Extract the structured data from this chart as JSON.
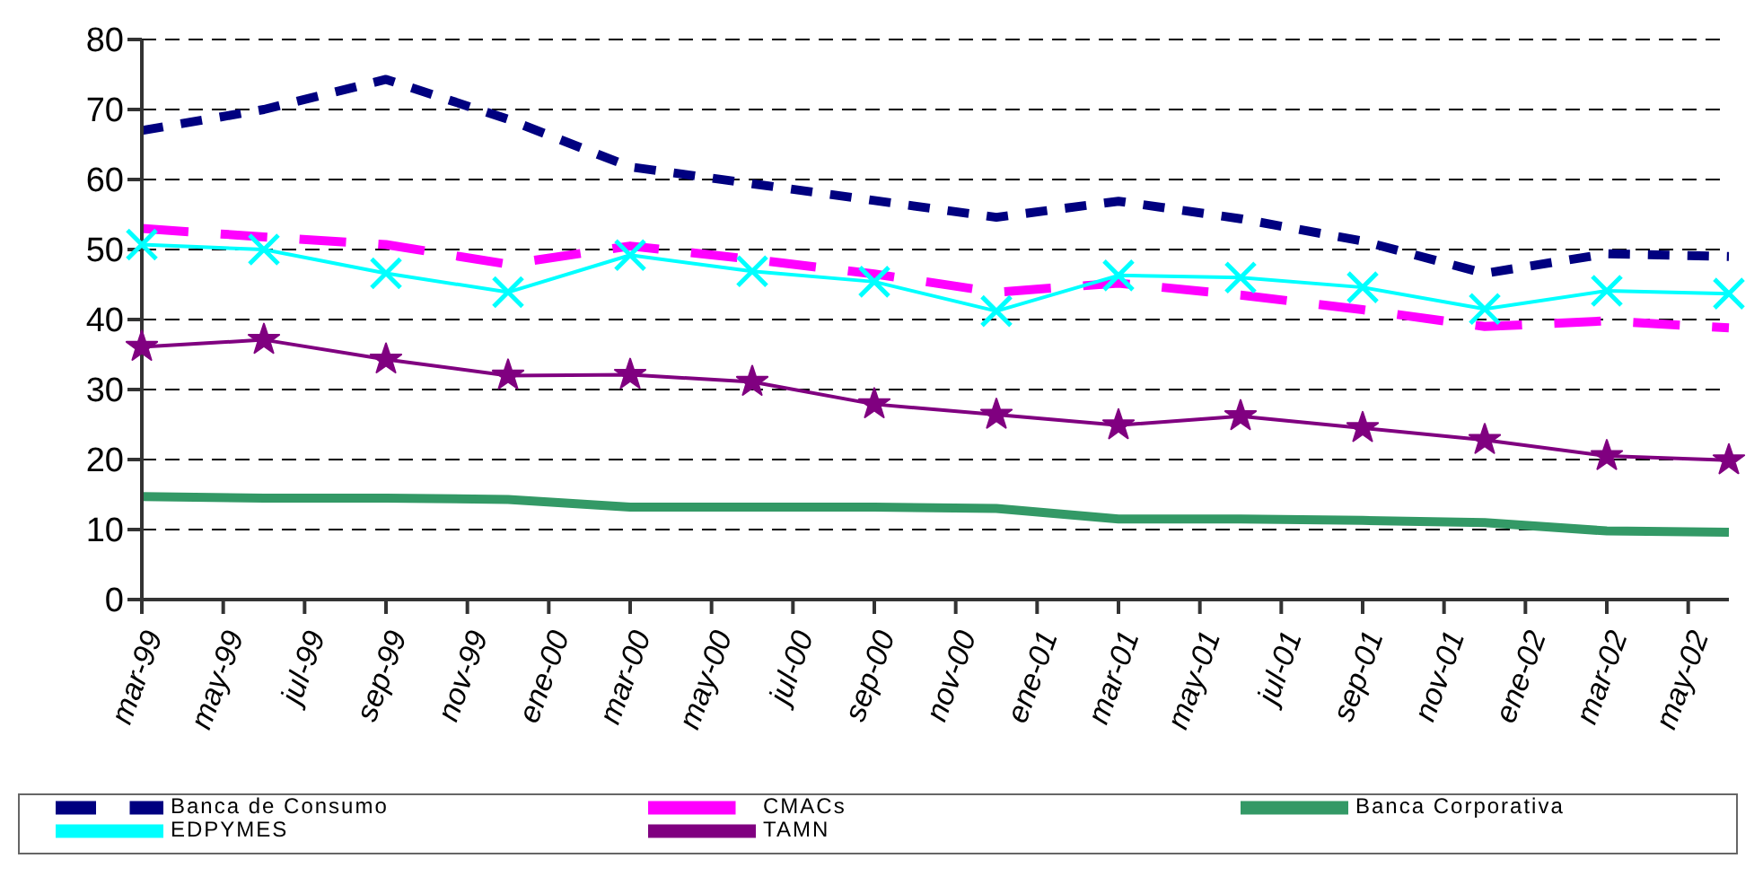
{
  "chart_data": {
    "type": "line",
    "categories": [
      "mar-99",
      null,
      "may-99",
      null,
      "jul-99",
      null,
      "sep-99",
      null,
      "nov-99",
      null,
      "ene-00",
      null,
      "mar-00",
      null,
      "may-00",
      null,
      "jul-00",
      null,
      "sep-00",
      null,
      "nov-00",
      null,
      "ene-01",
      null,
      "mar-01",
      null,
      "may-01",
      null,
      "jul-01",
      null,
      "sep-01",
      null,
      "nov-01",
      null,
      "ene-02",
      null,
      "mar-02",
      null,
      "may-02",
      null
    ],
    "series": [
      {
        "name": "Banca de Consumo",
        "color": "#000080",
        "line_style": "dashed",
        "marker": "none",
        "values": [
          67,
          null,
          null,
          70,
          null,
          null,
          74.3,
          null,
          null,
          68.6,
          null,
          null,
          61.8,
          null,
          null,
          59.4,
          null,
          null,
          57,
          null,
          null,
          54.6,
          null,
          null,
          56.9,
          null,
          null,
          54.4,
          null,
          null,
          51.2,
          null,
          null,
          46.6,
          null,
          null,
          49.4,
          null,
          null,
          49
        ]
      },
      {
        "name": "CMACs",
        "color": "#ff00ff",
        "line_style": "dashed",
        "marker": "none",
        "values": [
          53,
          null,
          null,
          51.8,
          null,
          null,
          50.7,
          null,
          null,
          47.9,
          null,
          null,
          50.5,
          null,
          null,
          48.6,
          null,
          null,
          46.5,
          null,
          null,
          43.9,
          null,
          null,
          45.2,
          null,
          null,
          43.5,
          null,
          null,
          41.4,
          null,
          null,
          39,
          null,
          null,
          39.8,
          null,
          null,
          38.8
        ]
      },
      {
        "name": "Banca Corporativa",
        "color": "#339966",
        "line_style": "solid",
        "marker": "none",
        "values": [
          14.7,
          null,
          null,
          14.5,
          null,
          null,
          14.5,
          null,
          null,
          14.3,
          null,
          null,
          13.2,
          null,
          null,
          13.2,
          null,
          null,
          13.2,
          null,
          null,
          13,
          null,
          null,
          11.5,
          null,
          null,
          11.5,
          null,
          null,
          11.3,
          null,
          null,
          11,
          null,
          null,
          9.8,
          null,
          null,
          9.6
        ]
      },
      {
        "name": "EDPYMES",
        "color": "#00ffff",
        "line_style": "solid",
        "marker": "cross",
        "values": [
          50.7,
          null,
          null,
          50,
          null,
          null,
          46.6,
          null,
          null,
          43.9,
          null,
          null,
          49.2,
          null,
          null,
          46.9,
          null,
          null,
          45.4,
          null,
          null,
          41.2,
          null,
          null,
          46.3,
          null,
          null,
          46,
          null,
          null,
          44.6,
          null,
          null,
          41.5,
          null,
          null,
          44.1,
          null,
          null,
          43.7
        ]
      },
      {
        "name": "TAMN",
        "color": "#800080",
        "line_style": "solid",
        "marker": "star",
        "values": [
          36.1,
          null,
          null,
          37.1,
          null,
          null,
          34.3,
          null,
          null,
          32,
          null,
          null,
          32.1,
          null,
          null,
          31.1,
          null,
          null,
          27.9,
          null,
          null,
          26.4,
          null,
          null,
          24.9,
          null,
          null,
          26.2,
          null,
          null,
          24.5,
          null,
          null,
          22.8,
          null,
          null,
          20.5,
          null,
          null,
          19.9
        ]
      }
    ],
    "ylim": [
      0,
      80
    ],
    "yticks": [
      0,
      10,
      20,
      30,
      40,
      50,
      60,
      70,
      80
    ],
    "grid": "y",
    "legend": "bottom"
  }
}
